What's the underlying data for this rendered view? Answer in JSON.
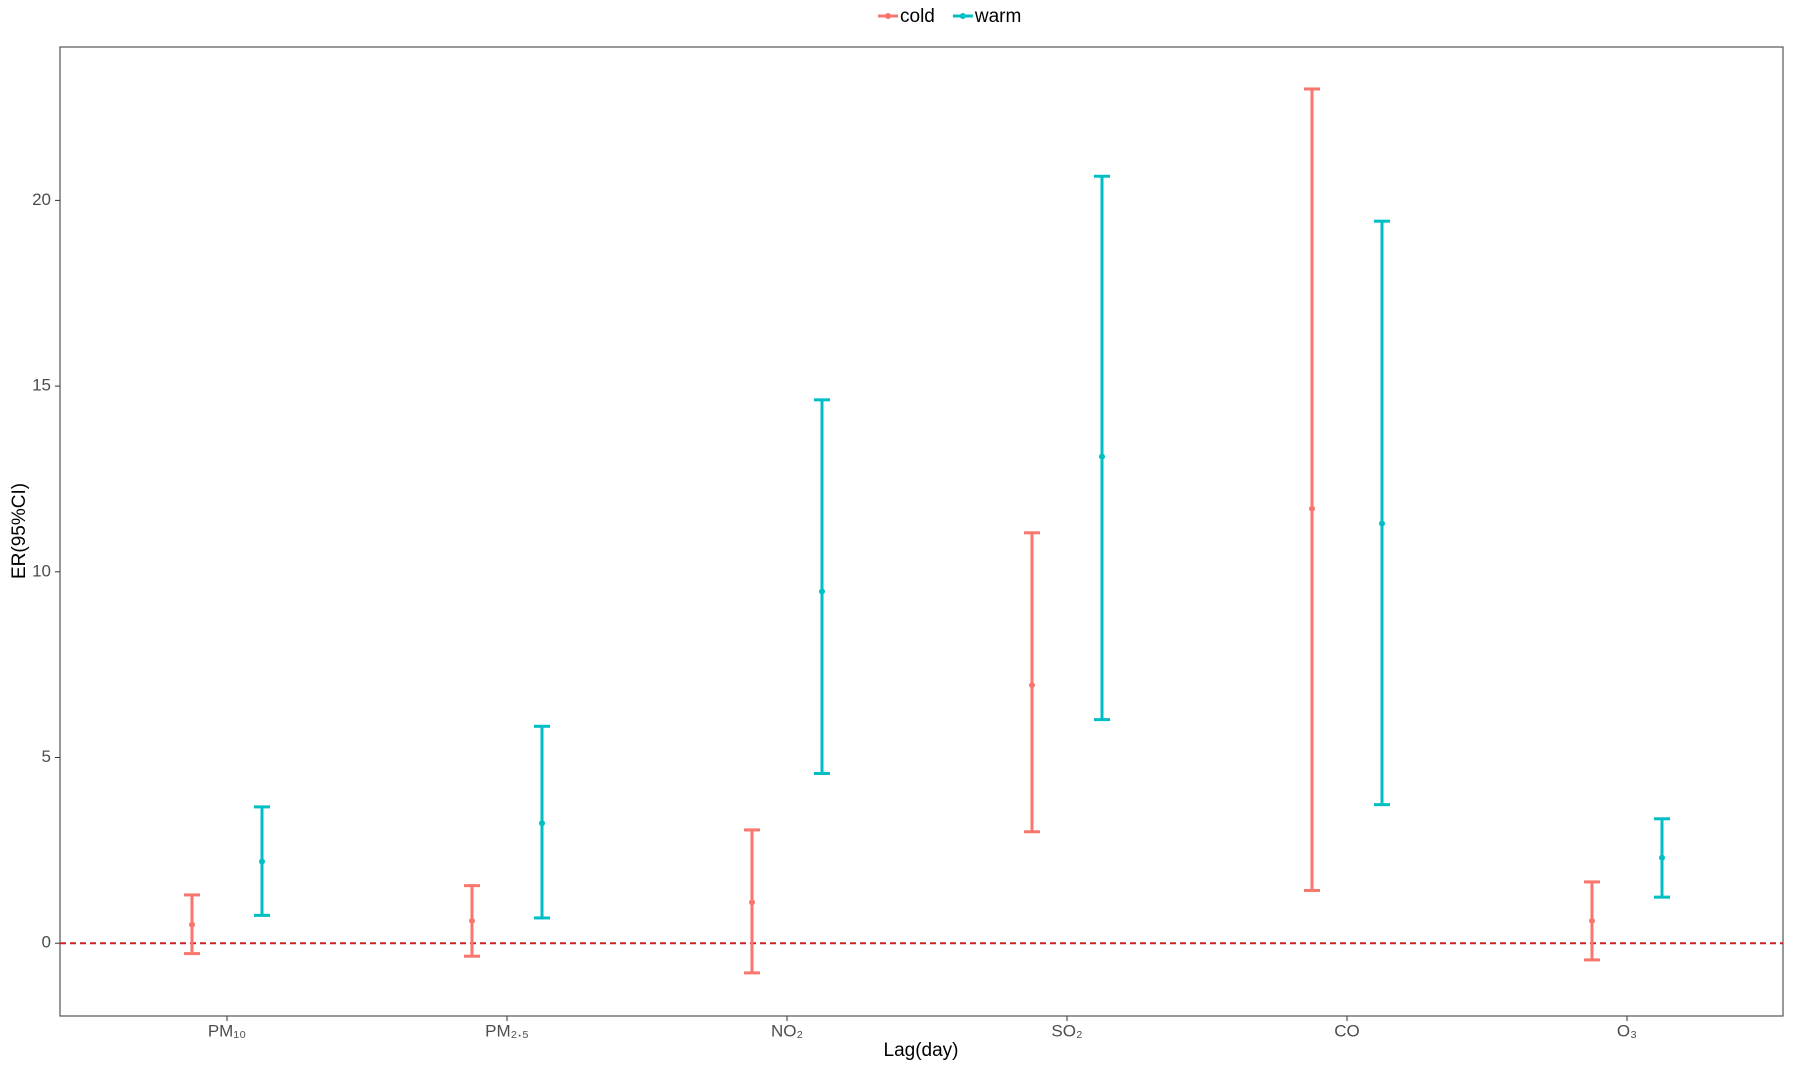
{
  "chart_data": {
    "type": "errorbar",
    "x_label": "Lag(day)",
    "y_label": "ER(95%CI)",
    "categories": [
      "PM₁₀",
      "PM₂.₅",
      "NO₂",
      "SO₂",
      "CO",
      "O₃"
    ],
    "series": [
      {
        "name": "cold",
        "color": "#F8766D",
        "values": [
          0.5,
          0.6,
          1.1,
          6.95,
          11.7,
          0.6
        ],
        "lower": [
          -0.28,
          -0.35,
          -0.8,
          3.0,
          1.42,
          -0.45
        ],
        "upper": [
          1.3,
          1.55,
          3.05,
          11.05,
          23.0,
          1.65
        ]
      },
      {
        "name": "warm",
        "color": "#00BFC4",
        "values": [
          2.2,
          3.23,
          9.47,
          13.1,
          11.3,
          2.3
        ],
        "lower": [
          0.75,
          0.68,
          4.57,
          6.02,
          3.73,
          1.24
        ],
        "upper": [
          3.67,
          5.84,
          14.63,
          20.65,
          19.44,
          3.35
        ]
      }
    ],
    "ylim": [
      -1.96,
      24.13
    ],
    "yticks": [
      0,
      5,
      10,
      15,
      20
    ],
    "reference_line": {
      "value": 0,
      "color": "#CC2222"
    },
    "legend": "top",
    "grid": false
  }
}
